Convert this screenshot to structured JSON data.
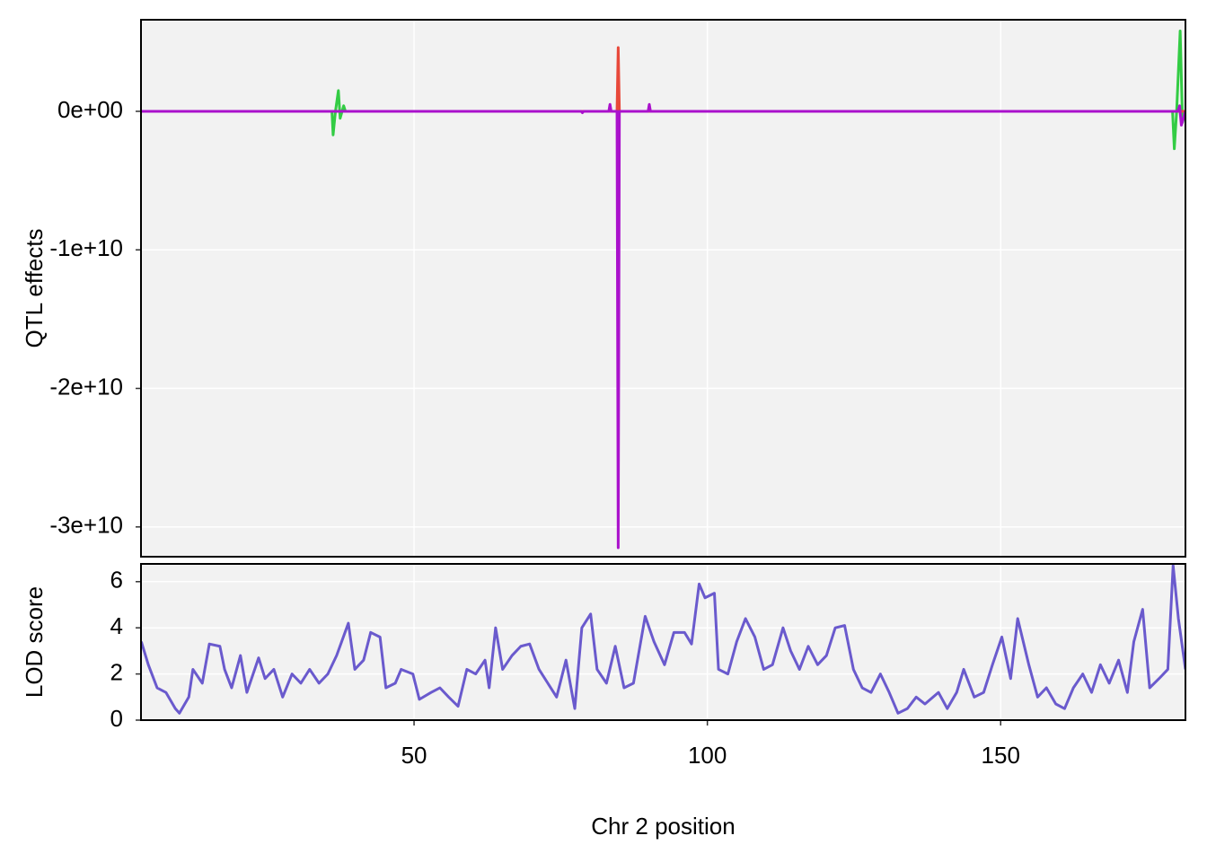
{
  "chart_data": [
    {
      "type": "line",
      "ylabel": "QTL effects",
      "xlim": [
        3.45,
        181.5
      ],
      "xticks": [
        50,
        100,
        150
      ],
      "ylim": [
        -32150000000,
        6610000000
      ],
      "yticks": [
        {
          "value": 0,
          "label": "0e+00"
        },
        {
          "value": -10000000000,
          "label": "-1e+10"
        },
        {
          "value": -20000000000,
          "label": "-2e+10"
        },
        {
          "value": -30000000000,
          "label": "-3e+10"
        }
      ],
      "grid": true,
      "series": [
        {
          "color": "#33cc44",
          "x": [
            3.5,
            36.0,
            36.2,
            36.6,
            37.1,
            37.4,
            38.0,
            38.3,
            179.3,
            179.6,
            180.0,
            180.6,
            181.0,
            181.5
          ],
          "values": [
            0,
            0,
            -1700000000,
            0,
            1500000000,
            -500000000,
            400000000,
            0,
            0,
            -2700000000,
            0,
            5800000000,
            -800000000,
            0
          ]
        },
        {
          "color": "#e8483a",
          "x": [
            3.5,
            84.6,
            84.8,
            85.0,
            181.5
          ],
          "values": [
            0,
            0,
            4600000000,
            0,
            0
          ]
        },
        {
          "color": "#aa11cc",
          "x": [
            3.5,
            78.5,
            78.7,
            78.9,
            83.2,
            83.4,
            83.6,
            84.6,
            84.8,
            85.0,
            89.9,
            90.1,
            90.3,
            180.2,
            180.5,
            180.8,
            181.5
          ],
          "values": [
            0,
            0,
            -100000000,
            0,
            0,
            500000000,
            0,
            0,
            -31500000000,
            0,
            0,
            500000000,
            0,
            0,
            400000000,
            -1000000000,
            0
          ]
        }
      ]
    },
    {
      "type": "line",
      "ylabel": "LOD score",
      "xlabel": "Chr 2 position",
      "xlim": [
        3.45,
        181.5
      ],
      "xticks": [
        50,
        100,
        150
      ],
      "ylim": [
        0,
        6.77
      ],
      "yticks": [
        0,
        2,
        4,
        6
      ],
      "grid": true,
      "series": [
        {
          "color": "#6a5acd",
          "x": [
            3.5,
            4.7,
            6.2,
            7.7,
            9.3,
            10.0,
            11.6,
            12.3,
            13.9,
            15.1,
            16.9,
            17.7,
            18.9,
            20.4,
            21.5,
            23.5,
            24.6,
            26.1,
            27.6,
            29.2,
            30.7,
            32.2,
            33.8,
            35.3,
            36.8,
            38.8,
            39.9,
            41.4,
            42.6,
            44.2,
            45.2,
            46.8,
            47.8,
            49.8,
            50.9,
            52.9,
            54.4,
            55.9,
            57.5,
            59.0,
            60.5,
            62.1,
            62.8,
            63.9,
            65.1,
            66.7,
            68.2,
            69.7,
            71.3,
            72.8,
            74.3,
            75.9,
            77.4,
            78.6,
            80.1,
            81.2,
            82.8,
            84.3,
            85.8,
            87.4,
            89.4,
            90.9,
            92.7,
            94.3,
            96.1,
            97.3,
            98.6,
            99.6,
            101.2,
            101.9,
            103.5,
            105.0,
            106.5,
            108.1,
            109.6,
            111.1,
            112.9,
            114.2,
            115.7,
            117.2,
            118.8,
            120.3,
            121.8,
            123.4,
            124.9,
            126.4,
            127.9,
            129.5,
            131.0,
            132.5,
            134.1,
            135.6,
            137.1,
            139.4,
            140.9,
            142.5,
            143.7,
            145.5,
            147.1,
            148.6,
            150.2,
            151.7,
            152.9,
            154.8,
            156.3,
            157.8,
            159.4,
            160.9,
            162.4,
            164.0,
            165.5,
            167.0,
            168.5,
            170.1,
            171.6,
            172.7,
            174.2,
            175.4,
            177.0,
            178.5,
            179.4,
            180.3,
            181.5
          ],
          "values": [
            3.4,
            2.4,
            1.4,
            1.2,
            0.5,
            0.3,
            1.0,
            2.2,
            1.6,
            3.3,
            3.2,
            2.2,
            1.4,
            2.8,
            1.2,
            2.7,
            1.8,
            2.2,
            1.0,
            2.0,
            1.6,
            2.2,
            1.6,
            2.0,
            2.8,
            4.2,
            2.2,
            2.6,
            3.8,
            3.6,
            1.4,
            1.6,
            2.2,
            2.0,
            0.9,
            1.2,
            1.4,
            1.0,
            0.6,
            2.2,
            2.0,
            2.6,
            1.4,
            4.0,
            2.2,
            2.8,
            3.2,
            3.3,
            2.2,
            1.6,
            1.0,
            2.6,
            0.5,
            4.0,
            4.6,
            2.2,
            1.6,
            3.2,
            1.4,
            1.6,
            4.5,
            3.4,
            2.4,
            3.8,
            3.8,
            3.3,
            5.9,
            5.3,
            5.5,
            2.2,
            2.0,
            3.4,
            4.4,
            3.6,
            2.2,
            2.4,
            4.0,
            3.0,
            2.2,
            3.2,
            2.4,
            2.8,
            4.0,
            4.1,
            2.2,
            1.4,
            1.2,
            2.0,
            1.2,
            0.3,
            0.5,
            1.0,
            0.7,
            1.2,
            0.5,
            1.2,
            2.2,
            1.0,
            1.2,
            2.4,
            3.6,
            1.8,
            4.4,
            2.4,
            1.0,
            1.4,
            0.7,
            0.5,
            1.4,
            2.0,
            1.2,
            2.4,
            1.6,
            2.6,
            1.2,
            3.4,
            4.8,
            1.4,
            1.8,
            2.2,
            6.7,
            4.4,
            2.2
          ]
        }
      ]
    }
  ]
}
